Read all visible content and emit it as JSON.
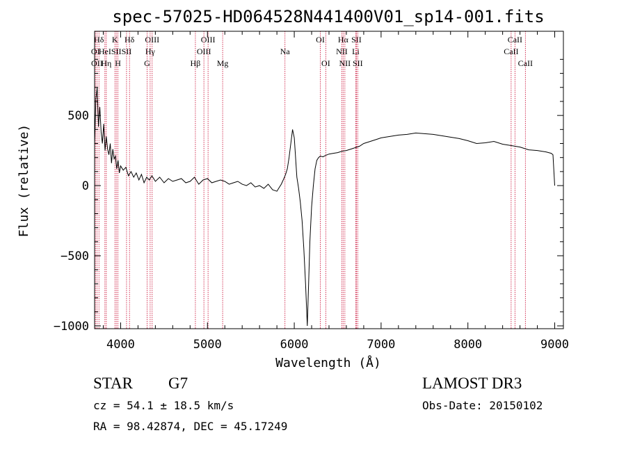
{
  "chart_data": {
    "type": "line",
    "title": "spec-57025-HD064528N441400V01_sp14-001.fits",
    "xlabel": "Wavelength (Å)",
    "ylabel": "Flux (relative)",
    "xlim": [
      3700,
      9100
    ],
    "ylim": [
      -1020,
      1100
    ],
    "x_ticks": [
      4000,
      5000,
      6000,
      7000,
      8000,
      9000
    ],
    "y_ticks": [
      -1000,
      -500,
      0,
      500
    ],
    "x_tick_labels": [
      "4000",
      "5000",
      "6000",
      "7000",
      "8000",
      "9000"
    ],
    "y_tick_labels": [
      "−1000",
      "−500",
      "0",
      "500"
    ],
    "line_color": "#000000",
    "marker_color": "#c8002a",
    "series": [
      {
        "name": "spectrum",
        "x": [
          3700,
          3715,
          3730,
          3745,
          3760,
          3775,
          3790,
          3805,
          3820,
          3835,
          3850,
          3865,
          3880,
          3895,
          3910,
          3925,
          3940,
          3955,
          3970,
          3985,
          4000,
          4030,
          4060,
          4090,
          4120,
          4150,
          4180,
          4210,
          4240,
          4270,
          4300,
          4330,
          4360,
          4400,
          4450,
          4500,
          4550,
          4600,
          4650,
          4700,
          4750,
          4800,
          4850,
          4900,
          4950,
          5000,
          5050,
          5100,
          5150,
          5200,
          5250,
          5300,
          5350,
          5400,
          5450,
          5500,
          5550,
          5600,
          5650,
          5700,
          5750,
          5800,
          5820,
          5850,
          5880,
          5900,
          5920,
          5940,
          5960,
          5980,
          6000,
          6010,
          6020,
          6030,
          6050,
          6070,
          6090,
          6110,
          6130,
          6150,
          6165,
          6180,
          6200,
          6220,
          6240,
          6260,
          6280,
          6300,
          6330,
          6360,
          6400,
          6450,
          6500,
          6550,
          6600,
          6650,
          6700,
          6750,
          6800,
          6850,
          6900,
          6950,
          7000,
          7050,
          7100,
          7150,
          7200,
          7300,
          7400,
          7500,
          7600,
          7700,
          7800,
          7900,
          8000,
          8100,
          8200,
          8300,
          8400,
          8500,
          8600,
          8700,
          8800,
          8900,
          8960,
          8980,
          9000
        ],
        "y": [
          300,
          620,
          700,
          420,
          560,
          380,
          300,
          440,
          250,
          350,
          260,
          220,
          300,
          160,
          260,
          190,
          210,
          120,
          180,
          90,
          140,
          110,
          130,
          70,
          100,
          60,
          90,
          40,
          80,
          20,
          60,
          40,
          70,
          30,
          60,
          20,
          50,
          30,
          40,
          50,
          20,
          30,
          60,
          10,
          40,
          50,
          20,
          30,
          40,
          30,
          10,
          20,
          30,
          10,
          0,
          20,
          -10,
          0,
          -20,
          10,
          -30,
          -40,
          -20,
          10,
          50,
          80,
          120,
          200,
          300,
          400,
          340,
          250,
          150,
          60,
          -20,
          -120,
          -250,
          -450,
          -700,
          -1000,
          -700,
          -400,
          -150,
          0,
          120,
          180,
          200,
          210,
          205,
          215,
          225,
          230,
          235,
          245,
          250,
          260,
          270,
          280,
          300,
          310,
          320,
          330,
          340,
          345,
          350,
          355,
          360,
          365,
          375,
          370,
          365,
          355,
          345,
          335,
          320,
          300,
          305,
          315,
          295,
          285,
          275,
          255,
          250,
          240,
          230,
          220,
          0
        ]
      }
    ],
    "line_markers": [
      {
        "label": "Hδ",
        "x": 3750,
        "row": 1
      },
      {
        "label": "OI",
        "x": 3710,
        "row": 2
      },
      {
        "label": "OII",
        "x": 3727,
        "row": 3
      },
      {
        "label": "HeI",
        "x": 3819,
        "row": 2
      },
      {
        "label": "Hη",
        "x": 3835,
        "row": 3
      },
      {
        "label": "K",
        "x": 3934,
        "row": 1
      },
      {
        "label": "SII",
        "x": 3950,
        "row": 2
      },
      {
        "label": "H",
        "x": 3969,
        "row": 3
      },
      {
        "label": "Hδ",
        "x": 4102,
        "row": 1
      },
      {
        "label": "SII",
        "x": 4068,
        "row": 2
      },
      {
        "label": "OIII",
        "x": 4363,
        "row": 1
      },
      {
        "label": "Hγ",
        "x": 4340,
        "row": 2
      },
      {
        "label": "G",
        "x": 4305,
        "row": 3
      },
      {
        "label": "OIII",
        "x": 5007,
        "row": 1
      },
      {
        "label": "OIII",
        "x": 4959,
        "row": 2
      },
      {
        "label": "Hβ",
        "x": 4861,
        "row": 3
      },
      {
        "label": "Mg",
        "x": 5175,
        "row": 3
      },
      {
        "label": "Na",
        "x": 5893,
        "row": 2
      },
      {
        "label": "OI",
        "x": 6300,
        "row": 1
      },
      {
        "label": "OI",
        "x": 6363,
        "row": 3
      },
      {
        "label": "Hα",
        "x": 6563,
        "row": 1
      },
      {
        "label": "SII",
        "x": 6716,
        "row": 1
      },
      {
        "label": "NII",
        "x": 6548,
        "row": 2
      },
      {
        "label": "Li",
        "x": 6708,
        "row": 2
      },
      {
        "label": "NII",
        "x": 6583,
        "row": 3
      },
      {
        "label": "SII",
        "x": 6731,
        "row": 3
      },
      {
        "label": "CaII",
        "x": 8542,
        "row": 1
      },
      {
        "label": "CaII",
        "x": 8498,
        "row": 2
      },
      {
        "label": "CaII",
        "x": 8662,
        "row": 3
      }
    ]
  },
  "footer": {
    "class_label": "STAR",
    "subclass": "G7",
    "survey": "LAMOST DR3",
    "redshift_text": "cz = 54.1 ± 18.5 km/s",
    "obs_date_text": "Obs-Date: 20150102",
    "coords_text": "RA =  98.42874, DEC =  45.17249"
  }
}
